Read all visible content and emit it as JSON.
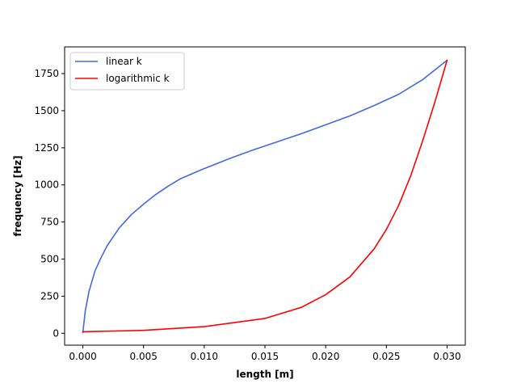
{
  "chart_data": {
    "type": "line",
    "title": "",
    "xlabel": "length [m]",
    "ylabel": "frequency [Hz]",
    "xlim": [
      -0.0015,
      0.0315
    ],
    "ylim": [
      -80,
      1930
    ],
    "xticks": [
      0.0,
      0.005,
      0.01,
      0.015,
      0.02,
      0.025,
      0.03
    ],
    "xtick_labels": [
      "0.000",
      "0.005",
      "0.010",
      "0.015",
      "0.020",
      "0.025",
      "0.030"
    ],
    "yticks": [
      0,
      250,
      500,
      750,
      1000,
      1250,
      1500,
      1750
    ],
    "ytick_labels": [
      "0",
      "250",
      "500",
      "750",
      "1000",
      "1250",
      "1500",
      "1750"
    ],
    "grid": false,
    "legend_position": "top-left",
    "series": [
      {
        "name": "linear k",
        "color": "#4169e1",
        "x": [
          0.0,
          0.0002,
          0.0005,
          0.001,
          0.0015,
          0.002,
          0.003,
          0.004,
          0.005,
          0.006,
          0.007,
          0.008,
          0.01,
          0.012,
          0.014,
          0.016,
          0.018,
          0.02,
          0.022,
          0.024,
          0.026,
          0.028,
          0.03
        ],
        "y": [
          5,
          150,
          280,
          420,
          510,
          590,
          710,
          800,
          870,
          935,
          990,
          1040,
          1110,
          1175,
          1235,
          1290,
          1345,
          1405,
          1465,
          1535,
          1610,
          1710,
          1840
        ]
      },
      {
        "name": "logarithmic k",
        "color": "#ff0000",
        "x": [
          0.0,
          0.005,
          0.01,
          0.015,
          0.018,
          0.02,
          0.022,
          0.024,
          0.025,
          0.026,
          0.027,
          0.028,
          0.029,
          0.03
        ],
        "y": [
          10,
          20,
          45,
          100,
          175,
          260,
          380,
          570,
          700,
          860,
          1060,
          1300,
          1560,
          1840
        ]
      }
    ]
  }
}
